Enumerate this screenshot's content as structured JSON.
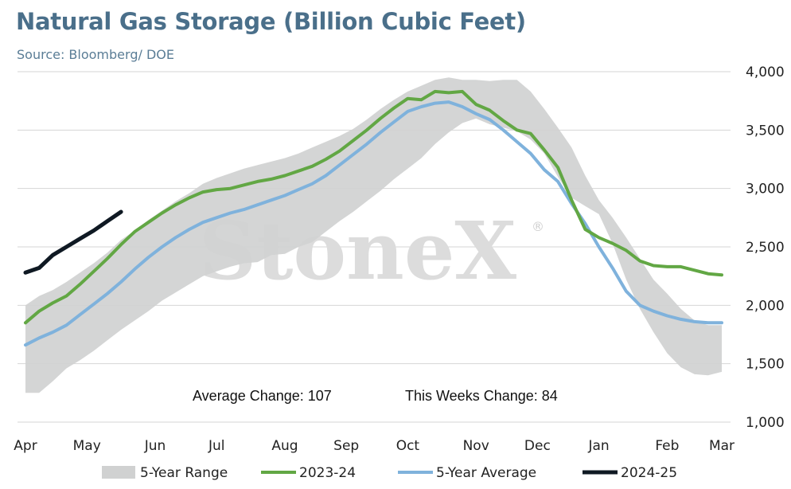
{
  "title": "Natural Gas Storage (Billion Cubic Feet)",
  "subtitle": "Source: Bloomberg/ DOE",
  "watermark": "StoneX",
  "watermark_mark": "®",
  "annotations": {
    "average_change": "Average Change: 107",
    "weekly_change": "This Weeks Change: 84"
  },
  "colors": {
    "range": "#d0d1d1",
    "s2324": "#62a744",
    "avg": "#7fb2dc",
    "s2425": "#0f1923"
  },
  "chart_data": {
    "type": "line",
    "title": "Natural Gas Storage (Billion Cubic Feet)",
    "x_unit": "week of storage year (Apr–Mar)",
    "x_range": [
      0,
      51
    ],
    "xlabel": "",
    "ylabel": "",
    "ylim": [
      1000,
      4000
    ],
    "y_axis_side": "right",
    "y_ticks": [
      1000,
      1500,
      2000,
      2500,
      3000,
      3500,
      4000
    ],
    "y_tick_labels": [
      "1,000",
      "1,500",
      "2,000",
      "2,500",
      "3,000",
      "3,500",
      "4,000"
    ],
    "x_ticks": [
      {
        "label": "Apr",
        "x": 0
      },
      {
        "label": "May",
        "x": 4.5
      },
      {
        "label": "Jun",
        "x": 9.5
      },
      {
        "label": "Jul",
        "x": 14
      },
      {
        "label": "Aug",
        "x": 19
      },
      {
        "label": "Sep",
        "x": 23.5
      },
      {
        "label": "Oct",
        "x": 28
      },
      {
        "label": "Nov",
        "x": 33
      },
      {
        "label": "Dec",
        "x": 37.5
      },
      {
        "label": "Jan",
        "x": 42
      },
      {
        "label": "Feb",
        "x": 47
      },
      {
        "label": "Mar",
        "x": 51
      }
    ],
    "grid": true,
    "legend_position": "bottom",
    "range": {
      "name": "5-Year Range",
      "x": [
        0,
        1,
        2,
        3,
        4,
        5,
        6,
        7,
        8,
        9,
        10,
        11,
        12,
        13,
        14,
        15,
        16,
        17,
        18,
        19,
        20,
        21,
        22,
        23,
        24,
        25,
        26,
        27,
        28,
        29,
        30,
        31,
        32,
        33,
        34,
        35,
        36,
        37,
        38,
        39,
        40,
        41,
        42,
        43,
        44,
        45,
        46,
        47,
        48,
        49,
        50,
        51
      ],
      "high": [
        2000,
        2080,
        2130,
        2200,
        2280,
        2360,
        2450,
        2560,
        2640,
        2730,
        2810,
        2890,
        2960,
        3040,
        3090,
        3130,
        3170,
        3200,
        3230,
        3260,
        3300,
        3350,
        3400,
        3450,
        3510,
        3590,
        3680,
        3760,
        3830,
        3880,
        3930,
        3950,
        3930,
        3930,
        3920,
        3930,
        3930,
        3830,
        3680,
        3520,
        3350,
        3110,
        2900,
        2750,
        2580,
        2400,
        2220,
        2100,
        1970,
        1870,
        1830,
        1830
      ],
      "low": [
        1250,
        1250,
        1350,
        1460,
        1530,
        1610,
        1700,
        1790,
        1870,
        1950,
        2040,
        2110,
        2180,
        2250,
        2290,
        2330,
        2360,
        2370,
        2430,
        2440,
        2500,
        2540,
        2630,
        2720,
        2800,
        2890,
        2980,
        3080,
        3170,
        3260,
        3380,
        3480,
        3560,
        3600,
        3550,
        3520,
        3490,
        3420,
        3300,
        3100,
        2920,
        2850,
        2780,
        2530,
        2220,
        1970,
        1770,
        1590,
        1470,
        1410,
        1400,
        1430
      ]
    },
    "series": [
      {
        "name": "2023-24",
        "x": [
          0,
          1,
          2,
          3,
          4,
          5,
          6,
          7,
          8,
          9,
          10,
          11,
          12,
          13,
          14,
          15,
          16,
          17,
          18,
          19,
          20,
          21,
          22,
          23,
          24,
          25,
          26,
          27,
          28,
          29,
          30,
          31,
          32,
          33,
          34,
          35,
          36,
          37,
          38,
          39,
          40,
          41,
          42,
          43,
          44,
          45,
          46,
          47,
          48,
          49,
          50,
          51
        ],
        "values": [
          1850,
          1950,
          2020,
          2080,
          2180,
          2290,
          2400,
          2520,
          2630,
          2710,
          2790,
          2860,
          2920,
          2970,
          2990,
          3000,
          3030,
          3060,
          3080,
          3110,
          3150,
          3190,
          3250,
          3320,
          3410,
          3500,
          3600,
          3690,
          3770,
          3760,
          3830,
          3820,
          3830,
          3720,
          3670,
          3580,
          3500,
          3470,
          3330,
          3180,
          2900,
          2650,
          2580,
          2530,
          2470,
          2380,
          2340,
          2330,
          2330,
          2300,
          2270,
          2260
        ]
      },
      {
        "name": "5-Year Average",
        "x": [
          0,
          1,
          2,
          3,
          4,
          5,
          6,
          7,
          8,
          9,
          10,
          11,
          12,
          13,
          14,
          15,
          16,
          17,
          18,
          19,
          20,
          21,
          22,
          23,
          24,
          25,
          26,
          27,
          28,
          29,
          30,
          31,
          32,
          33,
          34,
          35,
          36,
          37,
          38,
          39,
          40,
          41,
          42,
          43,
          44,
          45,
          46,
          47,
          48,
          49,
          50,
          51
        ],
        "values": [
          1660,
          1720,
          1770,
          1830,
          1920,
          2010,
          2100,
          2200,
          2310,
          2410,
          2500,
          2580,
          2650,
          2710,
          2750,
          2790,
          2820,
          2860,
          2900,
          2940,
          2990,
          3040,
          3110,
          3200,
          3290,
          3380,
          3480,
          3570,
          3660,
          3700,
          3730,
          3740,
          3700,
          3640,
          3590,
          3500,
          3400,
          3300,
          3160,
          3060,
          2870,
          2700,
          2500,
          2320,
          2120,
          2000,
          1950,
          1910,
          1880,
          1860,
          1850,
          1850
        ]
      },
      {
        "name": "2024-25",
        "x": [
          0,
          1,
          2,
          3,
          4,
          5,
          6,
          7
        ],
        "values": [
          2280,
          2320,
          2430,
          2500,
          2570,
          2640,
          2720,
          2800
        ]
      }
    ],
    "legend": [
      "5-Year Range",
      "2023-24",
      "5-Year Average",
      "2024-25"
    ]
  }
}
